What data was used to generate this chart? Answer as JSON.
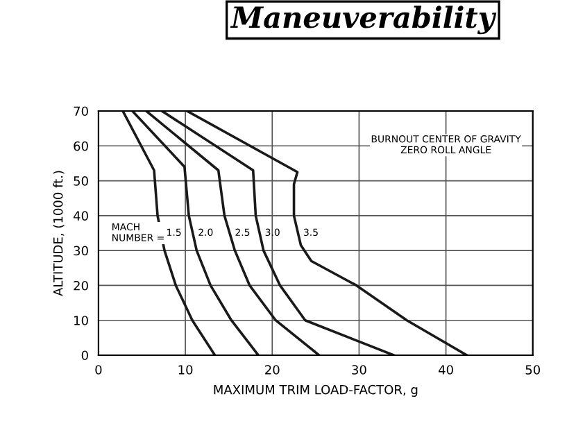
{
  "chart_data": {
    "type": "line",
    "title": "Maneuverability",
    "xlabel": "MAXIMUM TRIM LOAD-FACTOR, g",
    "ylabel": "ALTITUDE, (1000 ft.)",
    "series": [
      {
        "name": "1.5",
        "color": "#1a1a1a",
        "x": [
          2.8,
          6.4,
          6.8,
          7.6,
          8.9,
          10.8,
          13.4
        ],
        "values": [
          70,
          53,
          40,
          30,
          20,
          10,
          0
        ]
      },
      {
        "name": "2.0",
        "color": "#1a1a1a",
        "x": [
          3.9,
          9.9,
          10.4,
          11.3,
          12.9,
          15.3,
          18.4
        ],
        "values": [
          70,
          54,
          40,
          30,
          20,
          10,
          0
        ]
      },
      {
        "name": "2.5",
        "color": "#1a1a1a",
        "x": [
          5.5,
          13.8,
          14.5,
          15.7,
          17.4,
          20.4,
          25.4
        ],
        "values": [
          70,
          53,
          40,
          30,
          20,
          10,
          0
        ]
      },
      {
        "name": "3.0",
        "color": "#1a1a1a",
        "x": [
          7.3,
          17.8,
          18.1,
          19.0,
          20.9,
          23.8,
          34.0
        ],
        "values": [
          70,
          53,
          40,
          30,
          20,
          10,
          0
        ]
      },
      {
        "name": "3.5",
        "color": "#1a1a1a",
        "x": [
          10.2,
          22.9,
          22.5,
          22.5,
          23.3,
          24.5,
          29.7,
          35.5,
          42.4
        ],
        "values": [
          70,
          52.5,
          49,
          40,
          31.5,
          27,
          20,
          10,
          0
        ]
      }
    ],
    "annotations": [
      "MACH\nNUMBER =",
      "BURNOUT CENTER OF GRAVITY\nZERO ROLL ANGLE"
    ],
    "xlim": [
      0,
      50
    ],
    "ylim": [
      0,
      70
    ],
    "xticks": [
      0,
      10,
      20,
      30,
      40,
      50
    ],
    "yticks": [
      0,
      10,
      20,
      30,
      40,
      50,
      60,
      70
    ],
    "grid": true,
    "marker": "none",
    "line_style": "solid",
    "legend": false
  }
}
